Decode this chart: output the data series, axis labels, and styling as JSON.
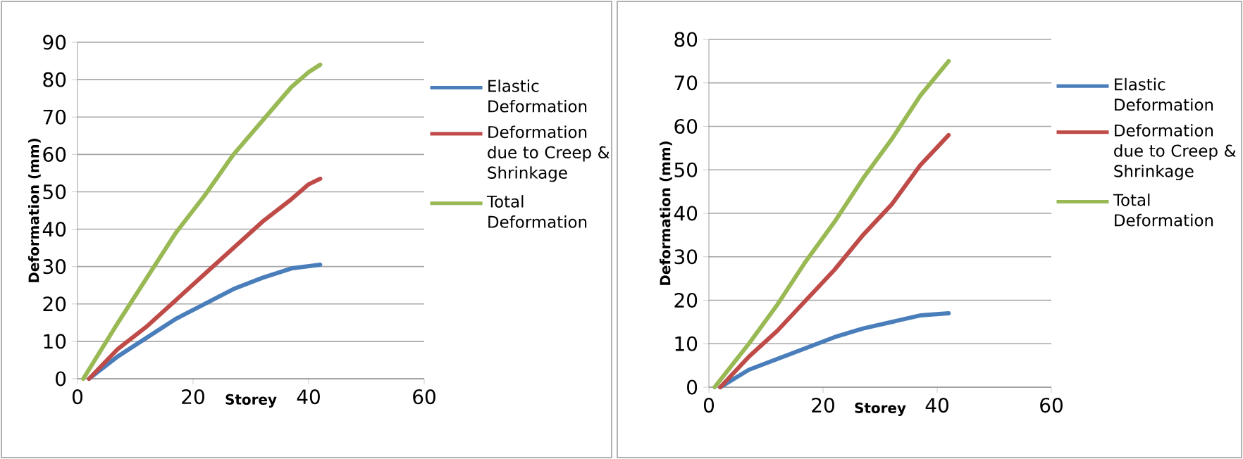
{
  "chart_data": [
    {
      "type": "line",
      "xlabel": "Storey",
      "ylabel": "Deformation (mm)",
      "xlim": [
        0,
        60
      ],
      "xticks": [
        0,
        20,
        40,
        60
      ],
      "ylim": [
        0,
        90
      ],
      "yticks": [
        0,
        10,
        20,
        30,
        40,
        50,
        60,
        70,
        80,
        90
      ],
      "grid": "y",
      "legend": "right",
      "marker": "none",
      "line_style": "solid",
      "series": [
        {
          "name": "Elastic Deformation",
          "color": "#4a7ebb",
          "x": [
            2,
            7,
            12,
            17,
            22,
            27,
            32,
            37,
            42
          ],
          "values": [
            0,
            6,
            11,
            16,
            20,
            24,
            27,
            29.5,
            30.5
          ]
        },
        {
          "name": "Deformation due to Creep & Shrinkage",
          "color": "#be4b48",
          "x": [
            2,
            7,
            12,
            17,
            22,
            27,
            32,
            37,
            40,
            42
          ],
          "values": [
            0,
            8,
            14,
            21,
            28,
            35,
            42,
            48,
            52,
            53.5
          ]
        },
        {
          "name": "Total Deformation",
          "color": "#98b954",
          "x": [
            1,
            7,
            12,
            17,
            22,
            27,
            32,
            37,
            40,
            42
          ],
          "values": [
            0,
            15,
            27,
            39,
            49,
            60,
            69,
            78,
            82,
            84
          ]
        }
      ]
    },
    {
      "type": "line",
      "xlabel": "Storey",
      "ylabel": "Deformation (mm)",
      "xlim": [
        0,
        60
      ],
      "xticks": [
        0,
        20,
        40,
        60
      ],
      "ylim": [
        0,
        80
      ],
      "yticks": [
        0,
        10,
        20,
        30,
        40,
        50,
        60,
        70,
        80
      ],
      "grid": "y",
      "legend": "right",
      "marker": "none",
      "line_style": "solid",
      "series": [
        {
          "name": "Elastic Deformation",
          "color": "#4a7ebb",
          "x": [
            2,
            7,
            12,
            17,
            22,
            27,
            32,
            37,
            42
          ],
          "values": [
            0,
            4,
            6.5,
            9,
            11.5,
            13.5,
            15,
            16.5,
            17
          ]
        },
        {
          "name": "Deformation due to Creep & Shrinkage",
          "color": "#be4b48",
          "x": [
            2,
            7,
            12,
            17,
            22,
            27,
            32,
            37,
            42
          ],
          "values": [
            0,
            7,
            13,
            20,
            27,
            35,
            42,
            51,
            58
          ]
        },
        {
          "name": "Total Deformation",
          "color": "#98b954",
          "x": [
            1,
            7,
            12,
            17,
            22,
            27,
            32,
            37,
            42
          ],
          "values": [
            0,
            10,
            19,
            29,
            38,
            48,
            57,
            67,
            75
          ]
        }
      ]
    }
  ]
}
